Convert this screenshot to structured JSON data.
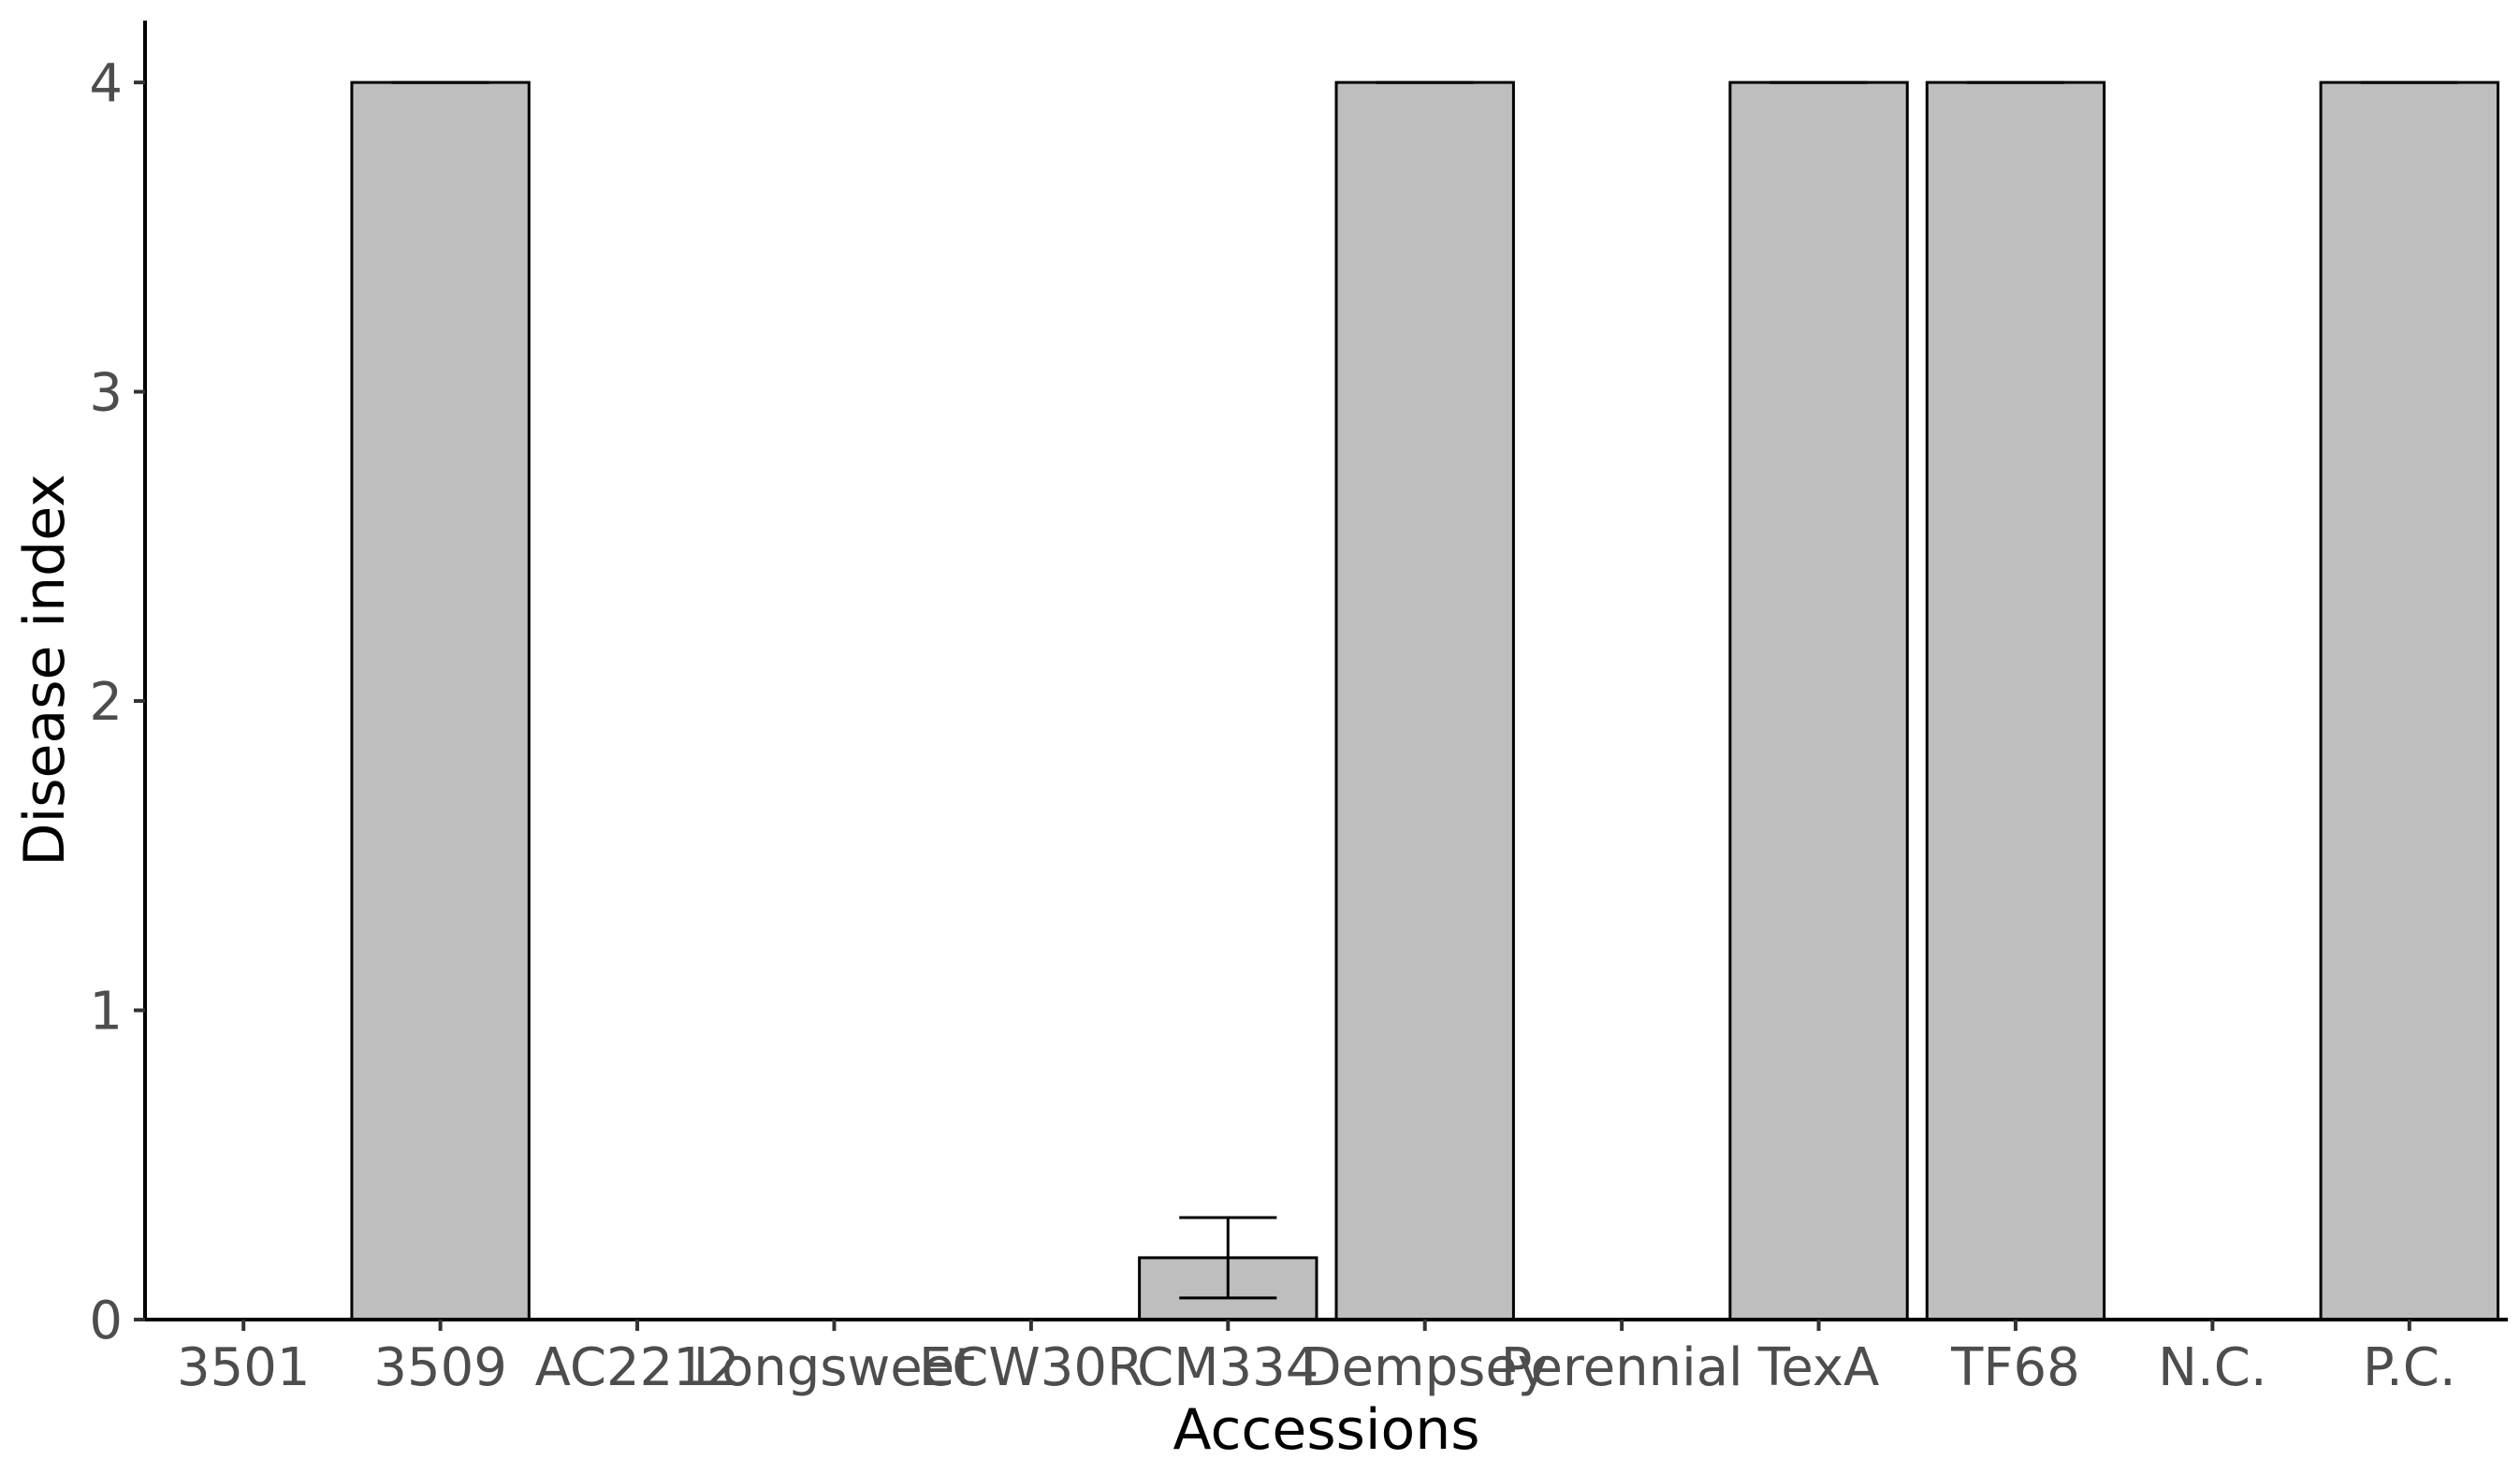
{
  "chart_data": {
    "type": "bar",
    "title": "",
    "xlabel": "Accessions",
    "ylabel": "Disease index",
    "categories": [
      "3501",
      "3509",
      "AC2212",
      "Longsweet",
      "ECW30R",
      "CM334",
      "Dempsey",
      "Perennial",
      "TexA",
      "TF68",
      "N.C.",
      "P.C."
    ],
    "values": [
      0,
      4,
      0,
      0,
      0,
      0.2,
      4,
      0,
      4,
      4,
      0,
      4
    ],
    "error_low": [
      0,
      4,
      0,
      0,
      0,
      0.07,
      4,
      0,
      4,
      4,
      0,
      4
    ],
    "error_high": [
      0,
      4,
      0,
      0,
      0,
      0.33,
      4,
      0,
      4,
      4,
      0,
      4
    ],
    "ylim": [
      0,
      4.2
    ],
    "yticks": [
      0,
      1,
      2,
      3,
      4
    ],
    "grid": false,
    "legend": "none",
    "bar_fill": "#bebebe",
    "bar_stroke": "#000000"
  }
}
